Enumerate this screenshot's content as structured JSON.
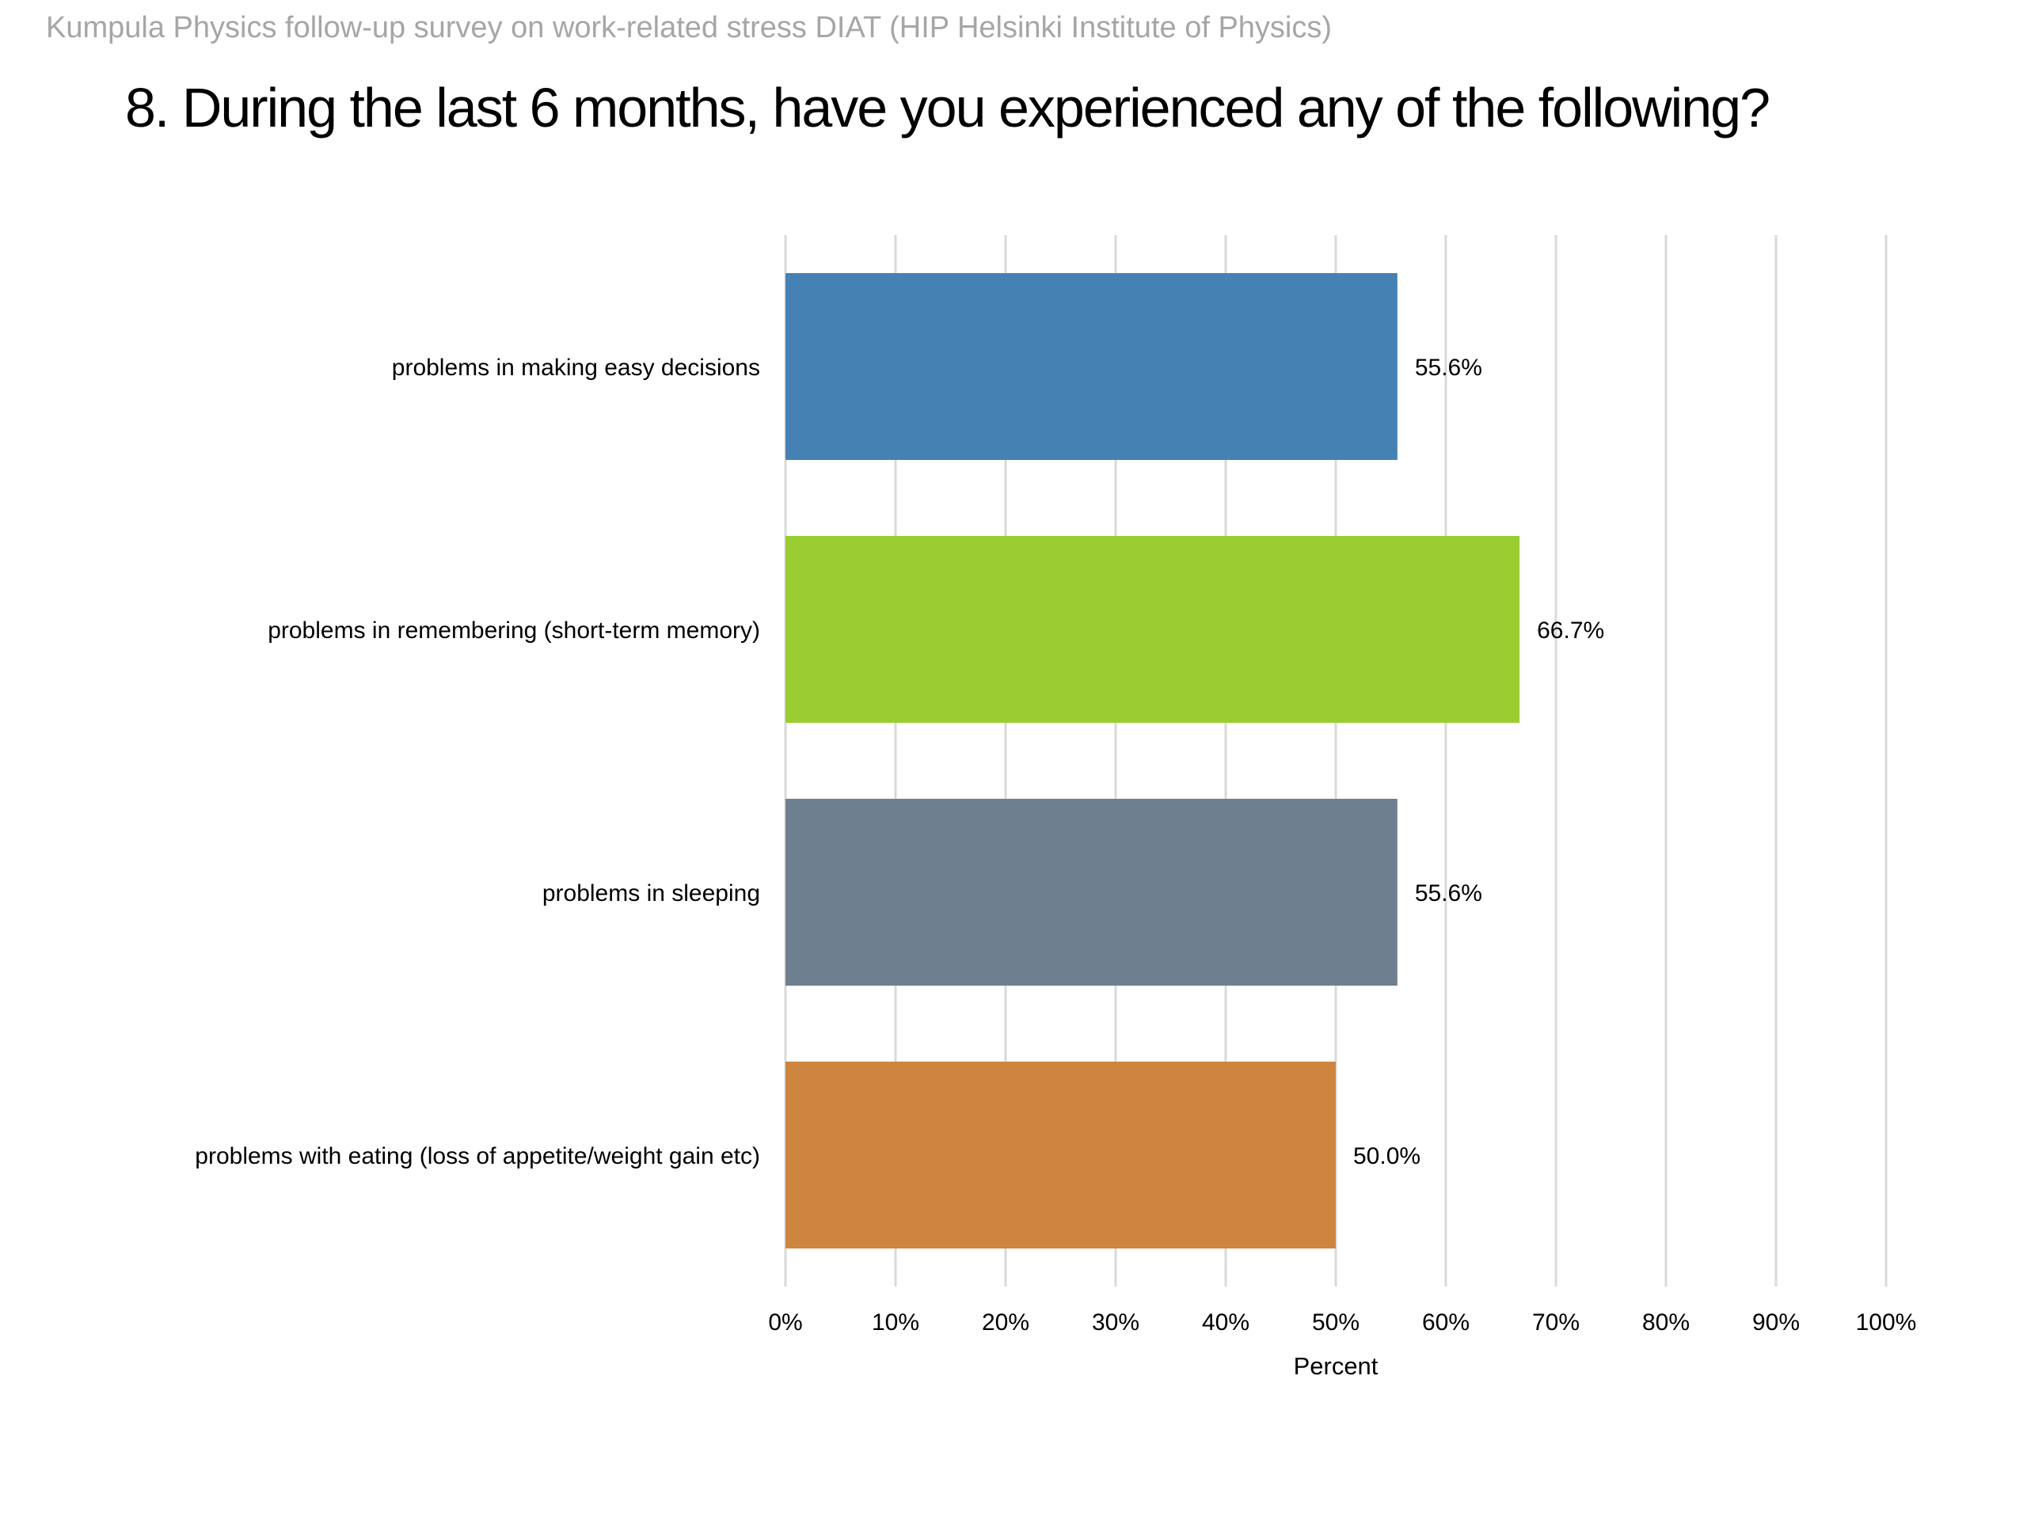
{
  "header": {
    "survey_line": "Kumpula Physics follow-up survey on work-related stress DIAT (HIP  Helsinki Institute of Physics)",
    "title": "8. During the last 6 months, have you experienced any of the following?"
  },
  "chart_data": {
    "type": "bar",
    "orientation": "horizontal",
    "categories": [
      "problems in making easy decisions",
      "problems in remembering (short-term memory)",
      "problems in sleeping",
      "problems with eating (loss of appetite/weight gain etc)"
    ],
    "values": [
      55.6,
      66.7,
      55.6,
      50.0
    ],
    "data_labels": [
      "55.6%",
      "66.7%",
      "55.6%",
      "50.0%"
    ],
    "bar_colors": [
      "#4681b3",
      "#9acd32",
      "#6e7f90",
      "#cd853f"
    ],
    "xlabel": "Percent",
    "ylabel": "",
    "xlim": [
      0,
      100
    ],
    "x_ticks": [
      0,
      10,
      20,
      30,
      40,
      50,
      60,
      70,
      80,
      90,
      100
    ],
    "x_tick_labels": [
      "0%",
      "10%",
      "20%",
      "30%",
      "40%",
      "50%",
      "60%",
      "70%",
      "80%",
      "90%",
      "100%"
    ],
    "grid": "vertical",
    "grid_color": "#d9d9d9",
    "legend": "none"
  }
}
